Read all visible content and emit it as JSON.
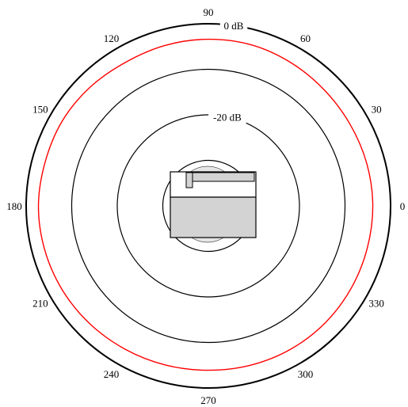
{
  "chart_data": {
    "type": "polar",
    "title": "",
    "angle_unit": "degrees",
    "angle_ticks": [
      {
        "angle": 0,
        "label": "0"
      },
      {
        "angle": 30,
        "label": "30"
      },
      {
        "angle": 60,
        "label": "60"
      },
      {
        "angle": 90,
        "label": "90"
      },
      {
        "angle": 120,
        "label": "120"
      },
      {
        "angle": 150,
        "label": "150"
      },
      {
        "angle": 180,
        "label": "180"
      },
      {
        "angle": 210,
        "label": "210"
      },
      {
        "angle": 240,
        "label": "240"
      },
      {
        "angle": 270,
        "label": "270"
      },
      {
        "angle": 300,
        "label": "300"
      },
      {
        "angle": 330,
        "label": "330"
      }
    ],
    "radial_range_db": [
      -40,
      0
    ],
    "rings": [
      {
        "level_db": 0,
        "label": "0 dB"
      },
      {
        "level_db": -10,
        "label": ""
      },
      {
        "level_db": -20,
        "label": "-20 dB"
      },
      {
        "level_db": -30,
        "label": ""
      }
    ],
    "series": [
      {
        "color": "#ff0000",
        "angles": [
          0,
          15,
          30,
          45,
          60,
          75,
          90,
          105,
          120,
          135,
          150,
          165,
          180,
          195,
          210,
          225,
          240,
          255,
          270,
          285,
          300,
          315,
          330,
          345
        ],
        "values_db": [
          -3.9,
          -4.0,
          -4.1,
          -4.0,
          -3.7,
          -3.4,
          -3.4,
          -3.5,
          -3.6,
          -3.2,
          -2.9,
          -2.9,
          -2.7,
          -2.8,
          -3.0,
          -3.3,
          -3.6,
          -3.8,
          -3.9,
          -3.8,
          -3.7,
          -3.7,
          -3.8,
          -3.9
        ]
      }
    ],
    "device_icon": "speaker-enclosure-icon",
    "colors": {
      "grid": "#000000",
      "pattern": "#ff0000",
      "device_fill": "#d3d3d3"
    }
  }
}
